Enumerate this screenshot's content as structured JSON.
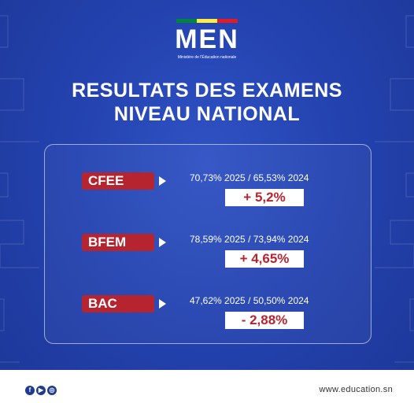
{
  "logo": {
    "text": "MEN",
    "subtitle": "Ministère de l'Éducation nationale",
    "flag_colors": [
      "#00853f",
      "#fdef42",
      "#e31b23"
    ]
  },
  "title": {
    "line1": "RESULTATS DES EXAMENS",
    "line2": "NIVEAU NATIONAL"
  },
  "results": [
    {
      "exam": "CFEE",
      "stats": "70,73%  2025 / 65,53% 2024",
      "delta": "+ 5,2%"
    },
    {
      "exam": "BFEM",
      "stats": "78,59% 2025  / 73,94% 2024",
      "delta": "+ 4,65%"
    },
    {
      "exam": "BAC",
      "stats": "47,62% 2025 / 50,50% 2024",
      "delta": "- 2,88%"
    }
  ],
  "footer": {
    "website": "www.education.sn",
    "social_icons": [
      "facebook-icon",
      "youtube-icon",
      "instagram-icon"
    ]
  },
  "colors": {
    "background": "#2443b0",
    "accent_red": "#b5242f",
    "text": "#ffffff"
  }
}
